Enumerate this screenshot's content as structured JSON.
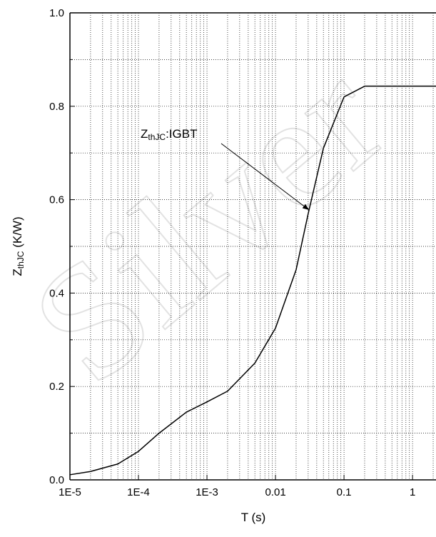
{
  "chart_data": {
    "type": "line",
    "x_label": "T (s)",
    "y_label": {
      "main": "Z",
      "sub": "thJC",
      "rest": " (K/W)"
    },
    "annotation": {
      "main": "Z",
      "sub": "thJC",
      "rest": ":IGBT"
    },
    "watermark": "Silver",
    "color": "#000000",
    "x": [
      1e-05,
      2e-05,
      5e-05,
      0.0001,
      0.0002,
      0.0005,
      0.001,
      0.002,
      0.005,
      0.01,
      0.02,
      0.03,
      0.05,
      0.1,
      0.2,
      0.5,
      2.2
    ],
    "values": [
      0.011,
      0.018,
      0.034,
      0.061,
      0.1,
      0.145,
      0.167,
      0.19,
      0.25,
      0.325,
      0.45,
      0.57,
      0.71,
      0.82,
      0.843,
      0.843,
      0.843
    ],
    "xlog": true,
    "xlim": [
      1e-05,
      2.2
    ],
    "xticks": [
      {
        "value": 1e-05,
        "label": "1E-5"
      },
      {
        "value": 0.0001,
        "label": "1E-4"
      },
      {
        "value": 0.001,
        "label": "1E-3"
      },
      0.01,
      0.1,
      1
    ],
    "ylim": [
      0,
      1
    ],
    "yticks": [
      {
        "value": 0,
        "label": "0.0"
      },
      0.2,
      0.4,
      0.6,
      0.8,
      {
        "value": 1,
        "label": "1.0"
      }
    ],
    "grid": true
  }
}
